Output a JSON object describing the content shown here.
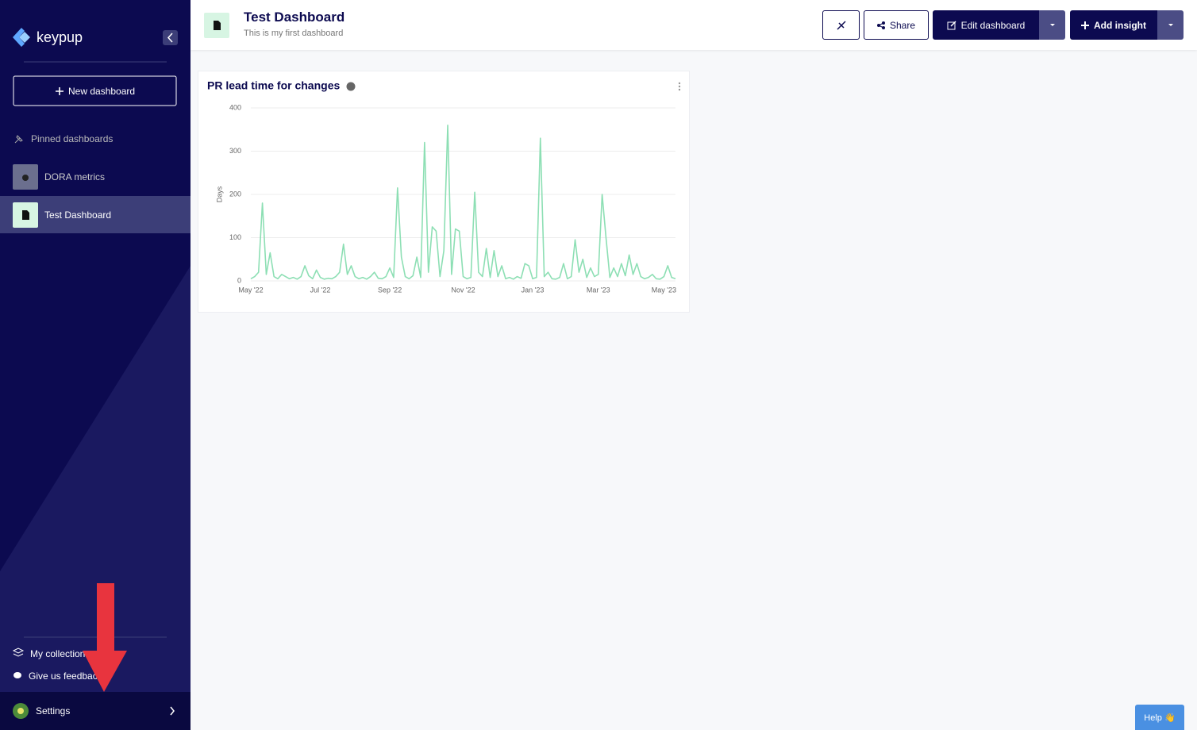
{
  "sidebar": {
    "logo": "keypup",
    "new_dashboard": "New dashboard",
    "pinned_heading": "Pinned dashboards",
    "items": [
      "DORA metrics",
      "Test Dashboard"
    ],
    "my_collections": "My collections",
    "feedback": "Give us feedback",
    "settings": "Settings"
  },
  "header": {
    "title": "Test Dashboard",
    "subtitle": "This is my first dashboard",
    "share": "Share",
    "edit": "Edit dashboard",
    "add": "Add insight"
  },
  "help": "Help 👋",
  "chart_data": {
    "type": "line",
    "title": "PR lead time for changes",
    "y_label": "Days",
    "color": "#8ddfb4",
    "grid": true,
    "ylim": [
      0,
      400
    ],
    "yticks": [
      0,
      100,
      200,
      300,
      400
    ],
    "categories": [
      "May '22",
      null,
      null,
      null,
      null,
      null,
      null,
      null,
      null,
      null,
      null,
      null,
      null,
      null,
      null,
      null,
      null,
      null,
      "Jul '22",
      null,
      null,
      null,
      null,
      null,
      null,
      null,
      null,
      null,
      null,
      null,
      null,
      null,
      null,
      null,
      null,
      null,
      "Sep '22",
      null,
      null,
      null,
      null,
      null,
      null,
      null,
      null,
      null,
      null,
      null,
      null,
      null,
      null,
      null,
      null,
      null,
      null,
      "Nov '22",
      null,
      null,
      null,
      null,
      null,
      null,
      null,
      null,
      null,
      null,
      null,
      null,
      null,
      null,
      null,
      null,
      null,
      "Jan '23",
      null,
      null,
      null,
      null,
      null,
      null,
      null,
      null,
      null,
      null,
      null,
      null,
      null,
      null,
      null,
      null,
      "Mar '23",
      null,
      null,
      null,
      null,
      null,
      null,
      null,
      null,
      null,
      null,
      null,
      null,
      null,
      null,
      null,
      null,
      "May '23",
      null,
      null,
      null
    ],
    "values": [
      5,
      10,
      20,
      180,
      15,
      65,
      10,
      5,
      15,
      10,
      5,
      8,
      4,
      10,
      35,
      12,
      5,
      25,
      8,
      4,
      6,
      5,
      10,
      20,
      85,
      15,
      35,
      10,
      5,
      8,
      4,
      10,
      20,
      6,
      5,
      10,
      30,
      8,
      215,
      55,
      10,
      5,
      12,
      55,
      8,
      320,
      20,
      125,
      115,
      10,
      70,
      360,
      15,
      120,
      115,
      10,
      5,
      8,
      205,
      20,
      10,
      75,
      8,
      70,
      10,
      35,
      5,
      8,
      4,
      10,
      6,
      40,
      35,
      5,
      8,
      330,
      10,
      20,
      5,
      4,
      8,
      40,
      5,
      10,
      95,
      20,
      50,
      8,
      30,
      10,
      15,
      200,
      100,
      8,
      30,
      10,
      40,
      12,
      60,
      15,
      40,
      10,
      5,
      8,
      15,
      5,
      4,
      10,
      35,
      8,
      5
    ]
  }
}
